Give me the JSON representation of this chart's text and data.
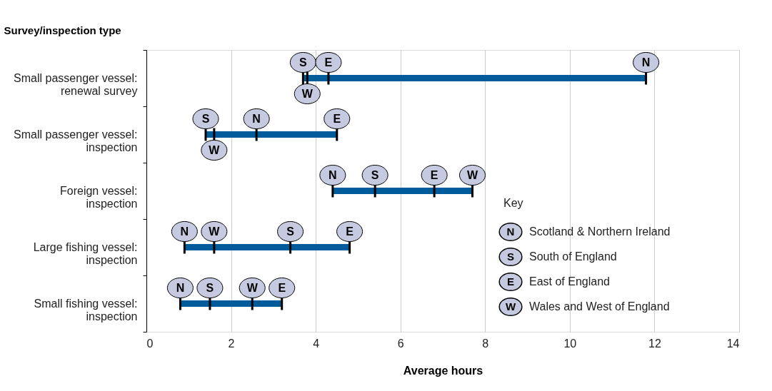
{
  "chart_data": {
    "type": "bar",
    "orientation": "horizontal",
    "xlabel": "Average hours",
    "ylabel": "Survey/inspection type",
    "legend_title": "Key",
    "categories": [
      "Small passenger vessel: renewal survey",
      "Small passenger vessel: inspection",
      "Foreign vessel: inspection",
      "Large fishing vessel: inspection",
      "Small fishing vessel: inspection"
    ],
    "series": [
      {
        "type": "bar",
        "color": "#005b9a",
        "base": [
          3.7,
          1.4,
          4.4,
          0.9,
          0.8
        ],
        "values": [
          8.1,
          3.1,
          3.3,
          3.9,
          2.4
        ]
      },
      {
        "type": "scatter",
        "name": "Scotland & Northern Ireland",
        "color": "#000000",
        "values": [
          11.8,
          2.6,
          4.4,
          0.9,
          0.8
        ],
        "value_labels": [
          "N",
          "N",
          "N",
          "N",
          "N"
        ]
      },
      {
        "type": "scatter",
        "name": "South of England",
        "color": "#000000",
        "values": [
          3.7,
          1.4,
          5.4,
          3.4,
          1.5
        ],
        "value_labels": [
          "S",
          "S",
          "S",
          "S",
          "S"
        ]
      },
      {
        "type": "scatter",
        "name": "East of England",
        "color": "#000000",
        "values": [
          4.3,
          4.5,
          6.8,
          4.8,
          3.2
        ],
        "value_labels": [
          "E",
          "E",
          "E",
          "E",
          "E"
        ]
      },
      {
        "type": "scatter",
        "name": "Wales and West of England",
        "color": "#000000",
        "values": [
          3.8,
          1.6,
          7.7,
          1.6,
          2.5
        ],
        "value_labels": [
          "W",
          "W",
          "W",
          "W",
          "W"
        ]
      }
    ],
    "xlim": [
      0,
      14
    ],
    "xticks": [
      0,
      2,
      4,
      6,
      8,
      10,
      12,
      14
    ],
    "grid": "x",
    "legend": "bottom right"
  }
}
